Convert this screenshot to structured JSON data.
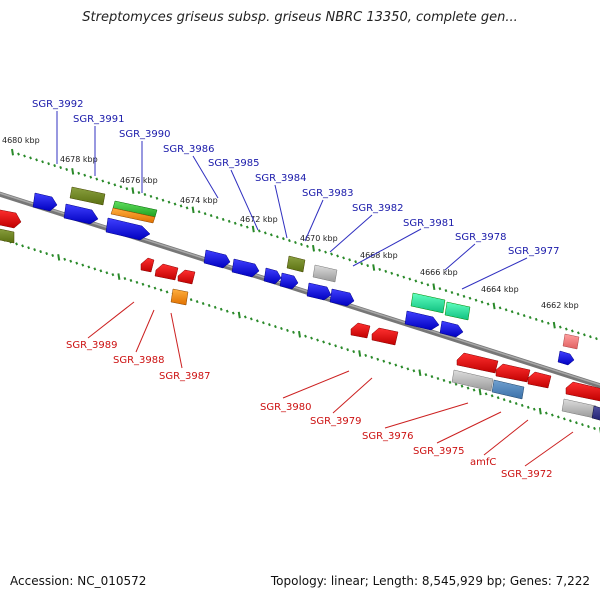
{
  "title": "Streptomyces griseus subsp. griseus NBRC 13350, complete gen...",
  "footer": {
    "accession": "Accession: NC_010572",
    "summary": "Topology: linear; Length: 8,545,929 bp; Genes: 7,222"
  },
  "colors": {
    "backbone": "#7a7a7a",
    "ticks": "#2a8a2a",
    "top_label": "#1a1aaa",
    "bottom_label": "#cc1111"
  },
  "scale_labels": [
    "4680 kbp",
    "4678 kbp",
    "4676 kbp",
    "4674 kbp",
    "4672 kbp",
    "4670 kbp",
    "4668 kbp",
    "4666 kbp",
    "4664 kbp",
    "4662 kbp"
  ],
  "top_gene_labels": [
    "SGR_3992",
    "SGR_3991",
    "SGR_3990",
    "SGR_3986",
    "SGR_3985",
    "SGR_3984",
    "SGR_3983",
    "SGR_3982",
    "SGR_3981",
    "SGR_3978",
    "SGR_3977"
  ],
  "bottom_gene_labels": [
    "SGR_3989",
    "SGR_3988",
    "SGR_3987",
    "SGR_3980",
    "SGR_3979",
    "SGR_3976",
    "SGR_3975",
    "amfC",
    "SGR_3972"
  ]
}
